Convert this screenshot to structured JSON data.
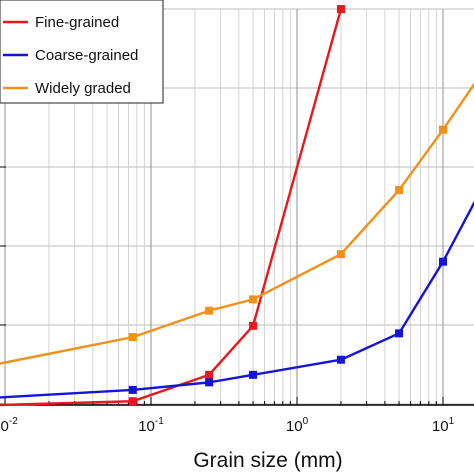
{
  "chart_data": {
    "type": "line",
    "xscale": "log",
    "xlim": [
      0.01,
      30
    ],
    "ylim": [
      0,
      105
    ],
    "grid": true,
    "legend_position": "top-left",
    "xlabel": "Grain size (mm)",
    "x_tick_labels": [
      {
        "base": "10",
        "exp": "-2",
        "value": 0.01
      },
      {
        "base": "10",
        "exp": "-1",
        "value": 0.1
      },
      {
        "base": "10",
        "exp": "0",
        "value": 1
      },
      {
        "base": "10",
        "exp": "1",
        "value": 10
      }
    ],
    "series": [
      {
        "name": "Fine-grained",
        "color": "#e41a1c",
        "x": [
          0.075,
          0.25,
          0.5,
          2.0
        ],
        "y": [
          1,
          8,
          21,
          105
        ]
      },
      {
        "name": "Coarse-grained",
        "color": "#1515d8",
        "x": [
          0.075,
          0.25,
          0.5,
          2.0,
          5.0,
          10.0,
          20.0
        ],
        "y": [
          4,
          6,
          8,
          12,
          19,
          38,
          60
        ]
      },
      {
        "name": "Widely graded",
        "color": "#f39019",
        "x": [
          0.075,
          0.25,
          0.5,
          2.0,
          5.0,
          10.0,
          20.0
        ],
        "y": [
          18,
          25,
          28,
          40,
          57,
          73,
          90
        ]
      }
    ],
    "left_edge_start_values": {
      "Fine-grained": 0,
      "Coarse-grained": 2,
      "Widely graded": 11
    }
  }
}
